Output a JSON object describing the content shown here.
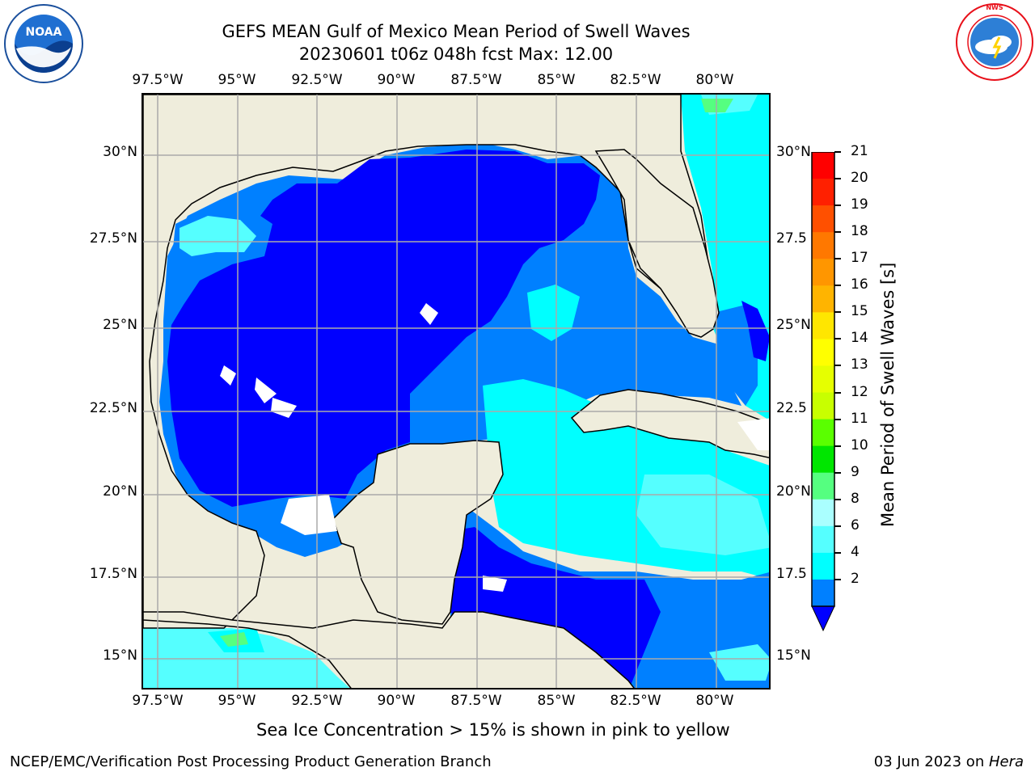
{
  "header": {
    "title_line1": "GEFS MEAN Gulf of Mexico Mean Period of Swell Waves",
    "title_line2": "20230601 t06z 048h fcst   Max: 12.00"
  },
  "logos": {
    "left": {
      "text": "NOAA",
      "ring_text": "NATIONAL OCEANIC AND ATMOSPHERIC ADMINISTRATION · U.S. DEPARTMENT OF COMMERCE"
    },
    "right": {
      "ring_text": "NATIONAL WEATHER SERVICE"
    }
  },
  "map": {
    "lon_labels": [
      "97.5°W",
      "95°W",
      "92.5°W",
      "90°W",
      "87.5°W",
      "85°W",
      "82.5°W",
      "80°W"
    ],
    "lat_labels_left": [
      "30°N",
      "27.5°N",
      "25°N",
      "22.5°N",
      "20°N",
      "17.5°N",
      "15°N"
    ],
    "lat_labels_right": [
      "30°N",
      "27.5",
      "25°N",
      "22.5",
      "20°N",
      "17.5",
      "15°N"
    ],
    "colors": {
      "land": "#efeddc",
      "blue_2_4": "#0000ff",
      "blue_4_6": "#0080ff",
      "cyan_6_8": "#00ffff",
      "aqua_8_9": "#55ffff",
      "green_9_10": "#55ff80",
      "grid": "#aaaaaa"
    }
  },
  "colorbar": {
    "label": "Mean Period of Swell Waves [s]",
    "ticks": [
      "21",
      "20",
      "19",
      "18",
      "17",
      "16",
      "15",
      "14",
      "13",
      "12",
      "11",
      "10",
      "9",
      "8",
      "6",
      "4",
      "2"
    ],
    "colors": [
      "#ff0000",
      "#ff2000",
      "#ff5000",
      "#ff7800",
      "#ff9600",
      "#ffb400",
      "#ffe600",
      "#ffff00",
      "#e6ff00",
      "#c8ff00",
      "#5aff00",
      "#00e600",
      "#55ff80",
      "#aaffff",
      "#55ffff",
      "#00ffff",
      "#0080ff"
    ],
    "under_color": "#0000ff"
  },
  "note": "Sea Ice Concentration > 15% is shown in pink to yellow",
  "footer": {
    "left": "NCEP/EMC/Verification Post Processing Product Generation Branch",
    "date": "03 Jun 2023 on ",
    "machine": "Hera"
  }
}
